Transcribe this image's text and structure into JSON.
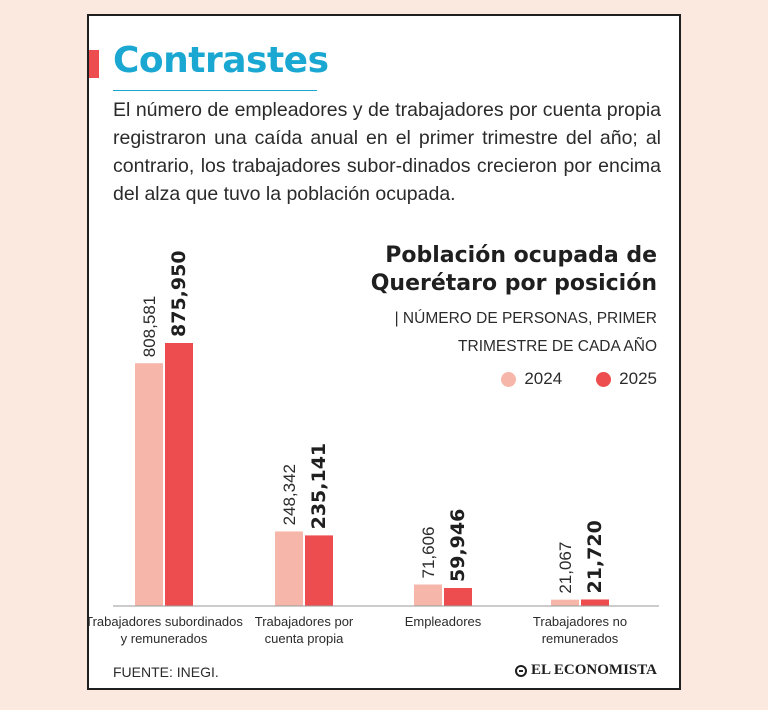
{
  "header": {
    "title": "Contrastes",
    "intro": "El número de empleadores y de trabajadores por cuenta propia registraron una caída anual en el primer trimestre del año; al contrario, los trabajadores subor-dinados crecieron por encima del alza que tuvo la población ocupada."
  },
  "colors": {
    "accent_title": "#1aa8d2",
    "accent_bar": "#ee4d4f",
    "series_2024": "#f6b6aa",
    "series_2025": "#ee4d4f",
    "axis": "#9a9a9a",
    "text": "#2b2b2b"
  },
  "chart_data": {
    "type": "bar",
    "title_line1": "Población ocupada de",
    "title_line2": "Querétaro por posición",
    "subtitle_line1": "| Número de personas, primer",
    "subtitle_line2": "trimestre de cada año",
    "categories": [
      [
        "Trabajadores subordinados",
        "y remunerados"
      ],
      [
        "Trabajadores por",
        "cuenta propia"
      ],
      [
        "Empleadores"
      ],
      [
        "Trabajadores no",
        "remunerados"
      ]
    ],
    "series": [
      {
        "name": "2024",
        "values": [
          808581,
          248342,
          71606,
          21067
        ],
        "labels": [
          "808,581",
          "248,342",
          "71,606",
          "21,067"
        ]
      },
      {
        "name": "2025",
        "values": [
          875950,
          235141,
          59946,
          21720
        ],
        "labels": [
          "875,950",
          "235,141",
          "59,946",
          "21,720"
        ]
      }
    ],
    "ylim": [
      0,
      875950
    ],
    "grid": false,
    "legend": "top-right"
  },
  "footer": {
    "source": "FUENTE: INEGI.",
    "brand": "EL ECONOMISTA"
  }
}
